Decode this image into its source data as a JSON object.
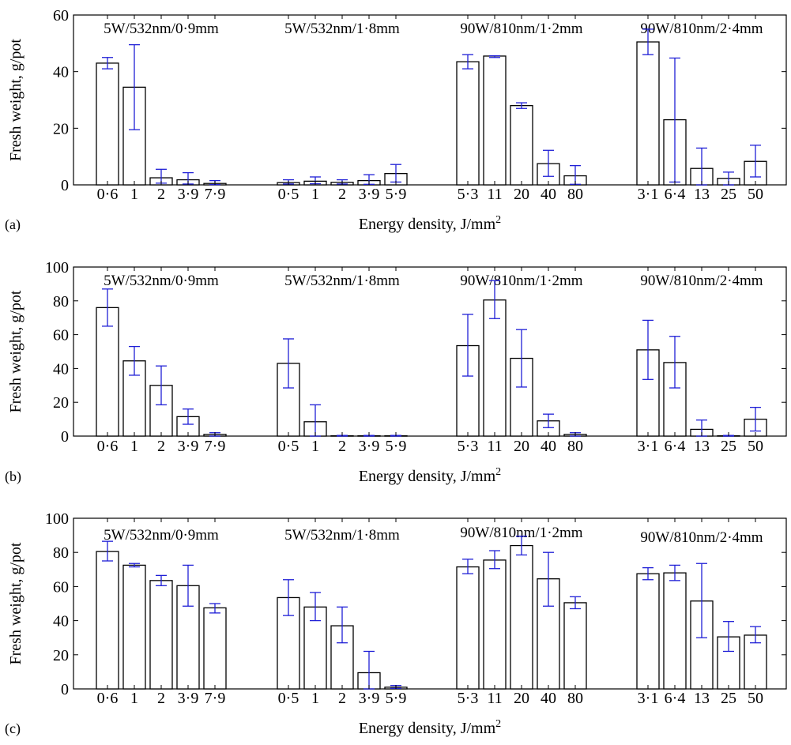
{
  "chart_data": [
    {
      "panel_label": "(a)",
      "type": "bar",
      "xlabel": "Energy density, J/mm",
      "xlabel_sup": "2",
      "ylabel": "Fresh weight, g/pot",
      "ylim": [
        0,
        60
      ],
      "yticks": [
        "0",
        "20",
        "40",
        "60"
      ],
      "errorbar_color": "#1f1fd6",
      "groups": [
        {
          "label": "5W/532nm/0·9mm",
          "categories": [
            "0·6",
            "1",
            "2",
            "3·9",
            "7·9"
          ],
          "values": [
            43,
            34.5,
            2.5,
            1.8,
            0.5
          ],
          "err_low": [
            41,
            19.5,
            0.6,
            0.3,
            0.1
          ],
          "err_high": [
            45,
            49.5,
            5.5,
            4.3,
            1.5
          ]
        },
        {
          "label": "5W/532nm/1·8mm",
          "categories": [
            "0·5",
            "1",
            "2",
            "3·9",
            "5·9"
          ],
          "values": [
            0.8,
            1.3,
            0.9,
            1.5,
            4.0
          ],
          "err_low": [
            0.3,
            0.4,
            0.3,
            0.2,
            1.0
          ],
          "err_high": [
            1.8,
            2.8,
            1.8,
            3.6,
            7.2
          ]
        },
        {
          "label": "90W/810nm/1·2mm",
          "categories": [
            "5·3",
            "11",
            "20",
            "40",
            "80"
          ],
          "values": [
            43.5,
            45.5,
            28,
            7.5,
            3.2
          ],
          "err_low": [
            41,
            45,
            27,
            3,
            0.2
          ],
          "err_high": [
            46,
            45.6,
            29,
            12.2,
            6.8
          ]
        },
        {
          "label": "90W/810nm/2·4mm",
          "categories": [
            "3·1",
            "6·4",
            "13",
            "25",
            "50"
          ],
          "values": [
            50.5,
            23,
            5.8,
            2.3,
            8.3
          ],
          "err_low": [
            46,
            1,
            0,
            0,
            2.8
          ],
          "err_high": [
            55,
            44.8,
            13,
            4.5,
            14
          ]
        }
      ]
    },
    {
      "panel_label": "(b)",
      "type": "bar",
      "xlabel": "Energy density, J/mm",
      "xlabel_sup": "2",
      "ylabel": "Fresh weight, g/pot",
      "ylim": [
        0,
        100
      ],
      "yticks": [
        "0",
        "20",
        "40",
        "60",
        "80",
        "100"
      ],
      "errorbar_color": "#1f1fd6",
      "groups": [
        {
          "label": "5W/532nm/0·9mm",
          "categories": [
            "0·6",
            "1",
            "2",
            "3·9",
            "7·9"
          ],
          "values": [
            76,
            44.5,
            30,
            11.5,
            1
          ],
          "err_low": [
            65,
            36,
            18.5,
            7,
            0
          ],
          "err_high": [
            87,
            53,
            41.5,
            16,
            2
          ]
        },
        {
          "label": "5W/532nm/1·8mm",
          "categories": [
            "0·5",
            "1",
            "2",
            "3·9",
            "5·9"
          ],
          "values": [
            43,
            8.5,
            0.2,
            0.2,
            0.2
          ],
          "err_low": [
            28.5,
            0,
            0,
            0,
            0
          ],
          "err_high": [
            57.5,
            18.5,
            0.4,
            0.4,
            0.4
          ]
        },
        {
          "label": "90W/810nm/1·2mm",
          "categories": [
            "5·3",
            "11",
            "20",
            "40",
            "80"
          ],
          "values": [
            53.5,
            80.5,
            46,
            9,
            1
          ],
          "err_low": [
            35.5,
            69.5,
            29,
            5,
            0
          ],
          "err_high": [
            72,
            92,
            63,
            13,
            2
          ]
        },
        {
          "label": "90W/810nm/2·4mm",
          "categories": [
            "3·1",
            "6·4",
            "13",
            "25",
            "50"
          ],
          "values": [
            51,
            43.5,
            4,
            0.2,
            10
          ],
          "err_low": [
            33.5,
            28.5,
            0,
            0,
            3
          ],
          "err_high": [
            68.5,
            59,
            9.5,
            0.4,
            17
          ]
        }
      ]
    },
    {
      "panel_label": "(c)",
      "type": "bar",
      "xlabel": "Energy density, J/mm",
      "xlabel_sup": "2",
      "ylabel": "Fresh weight, g/pot",
      "ylim": [
        0,
        100
      ],
      "yticks": [
        "0",
        "20",
        "40",
        "60",
        "80",
        "100"
      ],
      "errorbar_color": "#1f1fd6",
      "groups": [
        {
          "label": "5W/532nm/0·9mm",
          "categories": [
            "0·6",
            "1",
            "2",
            "3·9",
            "7·9"
          ],
          "values": [
            80.5,
            72.5,
            63.5,
            60.5,
            47.5
          ],
          "err_low": [
            75,
            71.5,
            60.5,
            48.5,
            44.5
          ],
          "err_high": [
            86.5,
            73.5,
            66.5,
            72.5,
            50
          ]
        },
        {
          "label": "5W/532nm/1·8mm",
          "categories": [
            "0·5",
            "1",
            "2",
            "3·9",
            "5·9"
          ],
          "values": [
            53.5,
            48,
            37,
            9.5,
            1
          ],
          "err_low": [
            43,
            40,
            27,
            0,
            0.3
          ],
          "err_high": [
            64,
            56.5,
            48,
            22,
            2
          ]
        },
        {
          "label": "90W/810nm/1·2mm",
          "categories": [
            "5·3",
            "11",
            "20",
            "40",
            "80"
          ],
          "values": [
            71.5,
            75.5,
            84,
            64.5,
            50.5
          ],
          "err_low": [
            67.5,
            70.5,
            78.5,
            48.5,
            47
          ],
          "err_high": [
            76,
            81,
            89.5,
            80,
            54
          ]
        },
        {
          "label": "90W/810nm/2·4mm",
          "categories": [
            "3·1",
            "6·4",
            "13",
            "25",
            "50"
          ],
          "values": [
            67.5,
            68,
            51.5,
            30.5,
            31.5
          ],
          "err_low": [
            64,
            63.5,
            30,
            22,
            27
          ],
          "err_high": [
            71,
            72.5,
            73.5,
            39.5,
            36.5
          ]
        }
      ]
    }
  ]
}
